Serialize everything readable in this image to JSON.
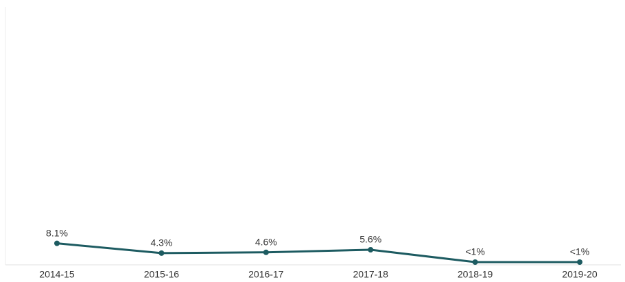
{
  "chart_data": {
    "type": "line",
    "categories": [
      "2014-15",
      "2015-16",
      "2016-17",
      "2017-18",
      "2018-19",
      "2019-20"
    ],
    "series": [
      {
        "color": "#1d5b61",
        "values": [
          8.1,
          4.3,
          4.6,
          5.6,
          0.8,
          0.8
        ],
        "value_labels": [
          "8.1%",
          "4.3%",
          "4.6%",
          "5.6%",
          "<1%",
          "<1%"
        ]
      }
    ],
    "ylim": [
      0,
      100
    ]
  }
}
